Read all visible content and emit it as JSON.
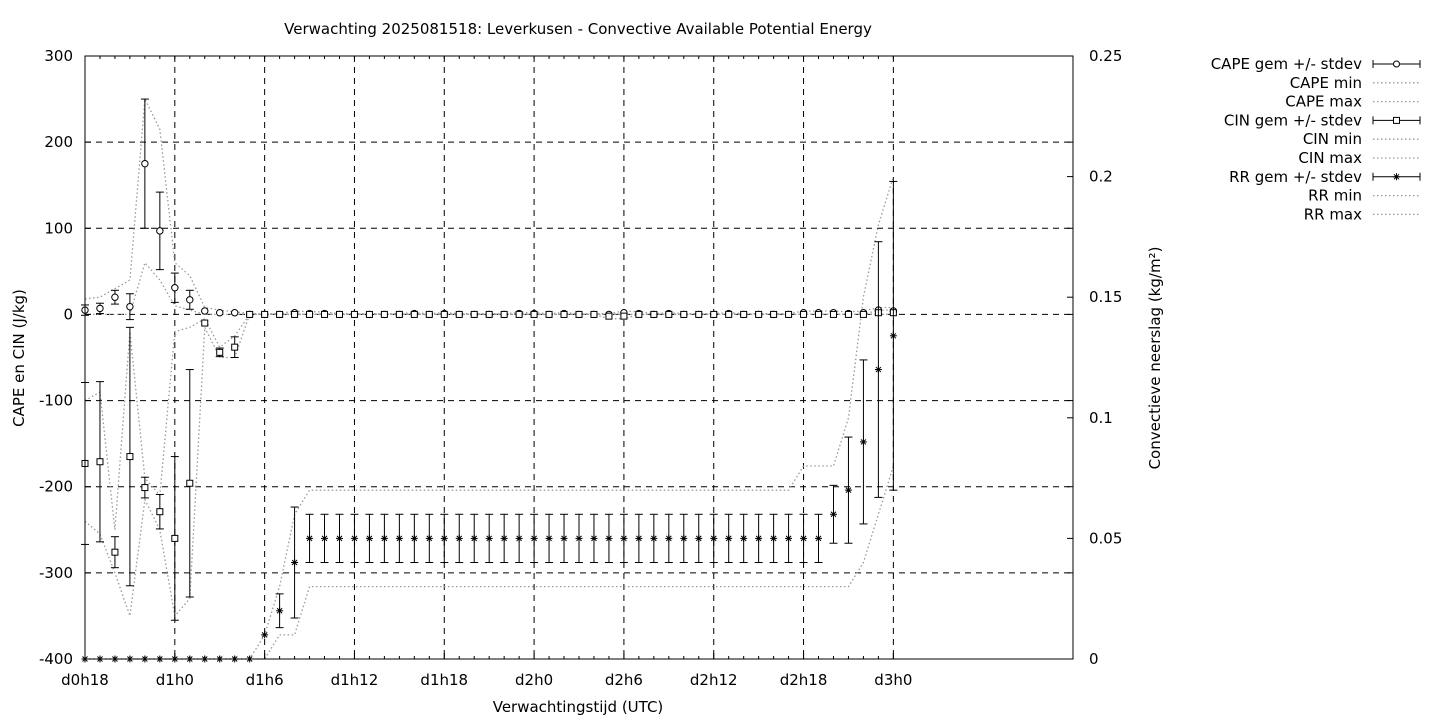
{
  "chart_data": {
    "type": "line",
    "title": "Verwachting 2025081518: Leverkusen - Convective Available Potential Energy",
    "xlabel": "Verwachtingstijd (UTC)",
    "ylabel": "CAPE en CIN (J/kg)",
    "y2label": "Convectieve neerslag (kg/m²)",
    "xlim": [
      18,
      84
    ],
    "ylim": [
      -400,
      300
    ],
    "y2lim": [
      0,
      0.25
    ],
    "grid": true,
    "legend_position": "outside-right",
    "x_ticks": [
      {
        "x": 18,
        "label": "d0h18"
      },
      {
        "x": 24,
        "label": "d1h0"
      },
      {
        "x": 30,
        "label": "d1h6"
      },
      {
        "x": 36,
        "label": "d1h12"
      },
      {
        "x": 42,
        "label": "d1h18"
      },
      {
        "x": 48,
        "label": "d2h0"
      },
      {
        "x": 54,
        "label": "d2h6"
      },
      {
        "x": 60,
        "label": "d2h12"
      },
      {
        "x": 66,
        "label": "d2h18"
      },
      {
        "x": 72,
        "label": "d3h0"
      }
    ],
    "y_ticks": [
      "300",
      "200",
      "100",
      "0",
      "-100",
      "-200",
      "-300",
      "-400"
    ],
    "y2_ticks": [
      "0.25",
      "0.2",
      "0.15",
      "0.1",
      "0.05",
      "0"
    ],
    "x": [
      18,
      19,
      20,
      21,
      22,
      23,
      24,
      25,
      26,
      27,
      28,
      29,
      30,
      31,
      32,
      33,
      34,
      35,
      36,
      37,
      38,
      39,
      40,
      41,
      42,
      43,
      44,
      45,
      46,
      47,
      48,
      49,
      50,
      51,
      52,
      53,
      54,
      55,
      56,
      57,
      58,
      59,
      60,
      61,
      62,
      63,
      64,
      65,
      66,
      67,
      68,
      69,
      70,
      71,
      72
    ],
    "series": [
      {
        "name": "CAPE gem +/- stdev",
        "axis": "y",
        "style": "errorbar",
        "marker": "circle",
        "values": [
          5,
          7,
          20,
          9,
          175,
          97,
          31,
          17,
          4,
          2,
          2,
          0,
          0,
          0,
          2,
          1,
          1,
          0,
          0,
          0,
          0,
          0,
          1,
          0,
          1,
          0,
          0,
          0,
          0,
          1,
          1,
          0,
          1,
          0,
          0,
          0,
          2,
          1,
          0,
          1,
          0,
          0,
          0,
          1,
          0,
          0,
          0,
          0,
          2,
          2,
          2,
          1,
          2,
          5,
          4
        ],
        "stdev": [
          6,
          6,
          8,
          15,
          75,
          45,
          17,
          11,
          0,
          0,
          0,
          0,
          0,
          0,
          0,
          0,
          0,
          0,
          0,
          0,
          0,
          0,
          0,
          0,
          0,
          0,
          0,
          0,
          0,
          0,
          0,
          0,
          0,
          0,
          0,
          0,
          0,
          0,
          0,
          0,
          0,
          0,
          0,
          0,
          0,
          0,
          0,
          0,
          0,
          0,
          0,
          0,
          0,
          0,
          0
        ]
      },
      {
        "name": "CAPE min",
        "axis": "y",
        "style": "dotted",
        "values": [
          0,
          0,
          0,
          0,
          60,
          40,
          10,
          5,
          0,
          0,
          0,
          0,
          0,
          0,
          0,
          0,
          0,
          0,
          0,
          0,
          0,
          0,
          0,
          0,
          0,
          0,
          0,
          0,
          0,
          0,
          0,
          0,
          0,
          0,
          0,
          0,
          0,
          0,
          0,
          0,
          0,
          0,
          0,
          0,
          0,
          0,
          0,
          0,
          0,
          0,
          0,
          0,
          0,
          0,
          0
        ]
      },
      {
        "name": "CAPE max",
        "axis": "y",
        "style": "dotted",
        "values": [
          18,
          20,
          30,
          40,
          250,
          215,
          60,
          45,
          8,
          5,
          3,
          1,
          1,
          1,
          4,
          3,
          3,
          1,
          1,
          1,
          1,
          1,
          2,
          1,
          2,
          1,
          1,
          1,
          1,
          2,
          2,
          1,
          2,
          1,
          1,
          1,
          4,
          3,
          1,
          2,
          1,
          1,
          1,
          2,
          1,
          1,
          1,
          1,
          4,
          4,
          4,
          3,
          4,
          8,
          8
        ]
      },
      {
        "name": "CIN gem +/- stdev",
        "axis": "y",
        "style": "errorbar",
        "marker": "square",
        "values": [
          -173,
          -171,
          -276,
          -165,
          -201,
          -229,
          -260,
          -196,
          -10,
          -44,
          -38,
          0,
          0,
          0,
          0,
          0,
          0,
          0,
          0,
          0,
          0,
          0,
          0,
          0,
          0,
          0,
          0,
          0,
          0,
          0,
          0,
          0,
          0,
          0,
          0,
          -2,
          -2,
          0,
          0,
          0,
          0,
          0,
          0,
          0,
          0,
          0,
          0,
          0,
          0,
          0,
          0,
          0,
          0,
          2,
          2
        ],
        "stdev": [
          94,
          93,
          18,
          150,
          12,
          20,
          95,
          132,
          0,
          5,
          12,
          0,
          0,
          0,
          0,
          0,
          0,
          0,
          0,
          0,
          0,
          0,
          0,
          0,
          0,
          0,
          0,
          0,
          0,
          0,
          0,
          0,
          0,
          0,
          0,
          0,
          0,
          0,
          0,
          0,
          0,
          0,
          0,
          0,
          0,
          0,
          0,
          0,
          0,
          0,
          0,
          0,
          0,
          0,
          0
        ]
      },
      {
        "name": "CIN min",
        "axis": "y",
        "style": "dotted",
        "values": [
          -240,
          -255,
          -300,
          -350,
          -215,
          -250,
          -350,
          -330,
          -15,
          -50,
          -50,
          0,
          0,
          0,
          0,
          0,
          0,
          0,
          0,
          0,
          0,
          0,
          0,
          0,
          0,
          0,
          0,
          0,
          0,
          0,
          0,
          0,
          0,
          0,
          0,
          -5,
          -5,
          0,
          0,
          0,
          0,
          0,
          0,
          0,
          0,
          0,
          0,
          0,
          0,
          0,
          0,
          0,
          0,
          0,
          0
        ]
      },
      {
        "name": "CIN max",
        "axis": "y",
        "style": "dotted",
        "values": [
          -100,
          -90,
          -250,
          -20,
          -190,
          -210,
          -20,
          -15,
          -5,
          -38,
          -25,
          0,
          0,
          0,
          0,
          0,
          0,
          0,
          0,
          0,
          0,
          0,
          0,
          0,
          0,
          0,
          0,
          0,
          0,
          0,
          0,
          0,
          0,
          0,
          0,
          0,
          0,
          0,
          0,
          0,
          0,
          0,
          0,
          0,
          0,
          0,
          0,
          0,
          0,
          0,
          0,
          0,
          0,
          5,
          5
        ]
      },
      {
        "name": "RR gem +/- stdev",
        "axis": "y2",
        "style": "errorbar",
        "marker": "star",
        "values": [
          0,
          0,
          0,
          0,
          0,
          0,
          0,
          0,
          0,
          0,
          0,
          0,
          0.01,
          0.02,
          0.04,
          0.05,
          0.05,
          0.05,
          0.05,
          0.05,
          0.05,
          0.05,
          0.05,
          0.05,
          0.05,
          0.05,
          0.05,
          0.05,
          0.05,
          0.05,
          0.05,
          0.05,
          0.05,
          0.05,
          0.05,
          0.05,
          0.05,
          0.05,
          0.05,
          0.05,
          0.05,
          0.05,
          0.05,
          0.05,
          0.05,
          0.05,
          0.05,
          0.05,
          0.05,
          0.05,
          0.06,
          0.07,
          0.09,
          0.12,
          0.134
        ],
        "stdev": [
          0,
          0,
          0,
          0,
          0,
          0,
          0,
          0,
          0,
          0,
          0,
          0,
          0,
          0.007,
          0.023,
          0.01,
          0.01,
          0.01,
          0.01,
          0.01,
          0.01,
          0.01,
          0.01,
          0.01,
          0.01,
          0.01,
          0.01,
          0.01,
          0.01,
          0.01,
          0.01,
          0.01,
          0.01,
          0.01,
          0.01,
          0.01,
          0.01,
          0.01,
          0.01,
          0.01,
          0.01,
          0.01,
          0.01,
          0.01,
          0.01,
          0.01,
          0.01,
          0.01,
          0.01,
          0.01,
          0.012,
          0.022,
          0.034,
          0.053,
          0.064
        ]
      },
      {
        "name": "RR min",
        "axis": "y2",
        "style": "dotted",
        "values": [
          0,
          0,
          0,
          0,
          0,
          0,
          0,
          0,
          0,
          0,
          0,
          0,
          0,
          0.01,
          0.01,
          0.03,
          0.03,
          0.03,
          0.03,
          0.03,
          0.03,
          0.03,
          0.03,
          0.03,
          0.03,
          0.03,
          0.03,
          0.03,
          0.03,
          0.03,
          0.03,
          0.03,
          0.03,
          0.03,
          0.03,
          0.03,
          0.03,
          0.03,
          0.03,
          0.03,
          0.03,
          0.03,
          0.03,
          0.03,
          0.03,
          0.03,
          0.03,
          0.03,
          0.03,
          0.03,
          0.03,
          0.03,
          0.04,
          0.06,
          0.08
        ]
      },
      {
        "name": "RR max",
        "axis": "y2",
        "style": "dotted",
        "values": [
          0,
          0,
          0,
          0,
          0,
          0,
          0,
          0,
          0,
          0,
          0,
          0,
          0.01,
          0.03,
          0.06,
          0.07,
          0.07,
          0.07,
          0.07,
          0.07,
          0.07,
          0.07,
          0.07,
          0.07,
          0.07,
          0.07,
          0.07,
          0.07,
          0.07,
          0.07,
          0.07,
          0.07,
          0.07,
          0.07,
          0.07,
          0.07,
          0.07,
          0.07,
          0.07,
          0.07,
          0.07,
          0.07,
          0.07,
          0.07,
          0.07,
          0.07,
          0.07,
          0.07,
          0.08,
          0.08,
          0.08,
          0.1,
          0.15,
          0.18,
          0.2
        ]
      }
    ]
  }
}
